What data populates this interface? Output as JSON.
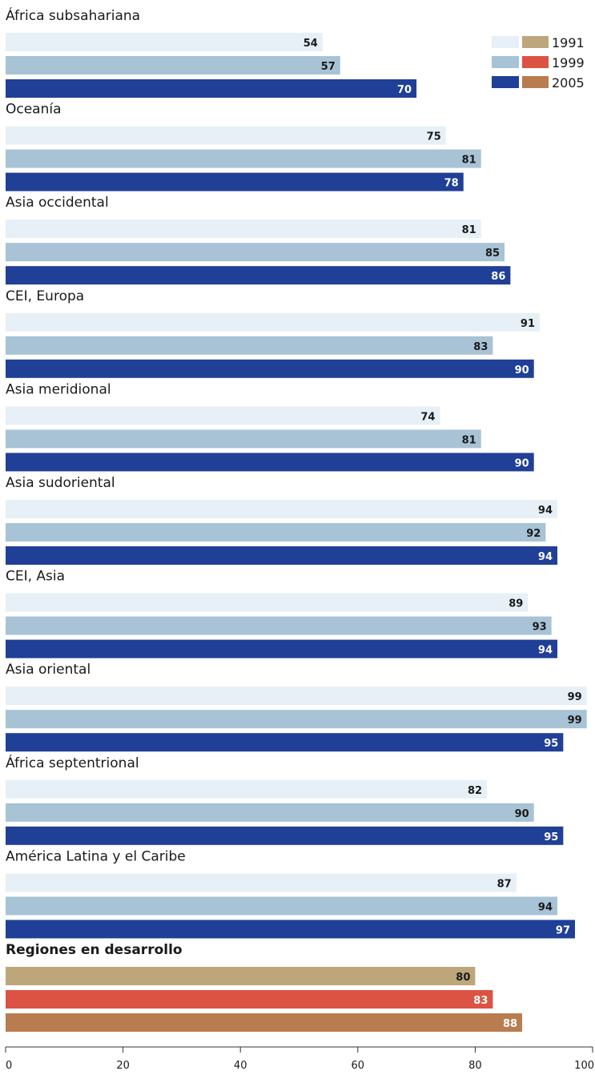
{
  "chart_data": {
    "type": "bar",
    "orientation": "horizontal",
    "xlim": [
      0,
      100
    ],
    "x_ticks": [
      "0",
      "20",
      "40",
      "60",
      "80",
      "100"
    ],
    "legend": {
      "placement": "top-right",
      "entries": [
        "1991",
        "1999",
        "2005"
      ],
      "colors_standard": [
        "#e6f0f6",
        "#a7c3d5",
        "#203f96"
      ],
      "colors_developing": [
        "#bda67a",
        "#dc5343",
        "#b87c4f"
      ]
    },
    "series_names": [
      "1991",
      "1999",
      "2005"
    ],
    "groups": [
      {
        "label": "África subsahariana",
        "values": [
          54,
          57,
          70
        ]
      },
      {
        "label": "Oceanía",
        "values": [
          75,
          81,
          78
        ]
      },
      {
        "label": "Asia occidental",
        "values": [
          81,
          85,
          86
        ]
      },
      {
        "label": "CEI, Europa",
        "values": [
          91,
          83,
          90
        ]
      },
      {
        "label": "Asia meridional",
        "values": [
          74,
          81,
          90
        ]
      },
      {
        "label": "Asia sudoriental",
        "values": [
          94,
          92,
          94
        ]
      },
      {
        "label": "CEI, Asia",
        "values": [
          89,
          93,
          94
        ]
      },
      {
        "label": "Asia oriental",
        "values": [
          99,
          99,
          95
        ]
      },
      {
        "label": "África septentrional",
        "values": [
          82,
          90,
          95
        ]
      },
      {
        "label": "América Latina y el Caribe",
        "values": [
          87,
          94,
          97
        ]
      },
      {
        "label": "Regiones en desarrollo",
        "values": [
          80,
          83,
          88
        ],
        "highlight": true
      }
    ]
  }
}
